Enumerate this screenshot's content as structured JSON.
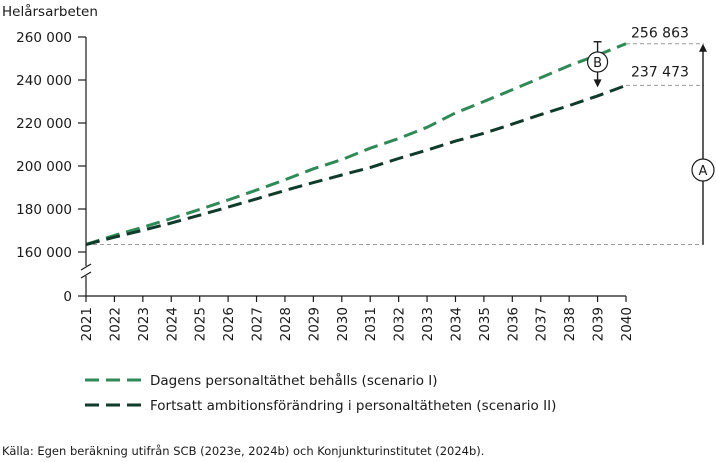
{
  "chart_data": {
    "type": "line",
    "ylabel": "Helårsarbeten",
    "x": [
      2021,
      2022,
      2023,
      2024,
      2025,
      2026,
      2027,
      2028,
      2029,
      2030,
      2031,
      2032,
      2033,
      2034,
      2035,
      2036,
      2037,
      2038,
      2039,
      2040
    ],
    "xtick_labels": [
      "2021",
      "2022",
      "2023",
      "2024",
      "2025",
      "2026",
      "2027",
      "2028",
      "2029",
      "2030",
      "2031",
      "2032",
      "2033",
      "2034",
      "2035",
      "2036",
      "2037",
      "2038",
      "2039",
      "2040"
    ],
    "ylim": [
      0,
      260000
    ],
    "y_axis_break": [
      0,
      160000
    ],
    "ytick_values": [
      0,
      160000,
      180000,
      200000,
      220000,
      240000,
      260000
    ],
    "ytick_labels": [
      "0",
      "160 000",
      "180 000",
      "200 000",
      "220 000",
      "240 000",
      "260 000"
    ],
    "series": [
      {
        "name": "Dagens personaltäthet behålls (scenario I)",
        "color": "#2e8b57",
        "style": "dashed",
        "values": [
          163500,
          167700,
          171500,
          175600,
          179800,
          184200,
          188800,
          193600,
          198700,
          203000,
          208300,
          212800,
          218000,
          224700,
          230000,
          235500,
          241000,
          246700,
          251600,
          256863
        ]
      },
      {
        "name": "Fortsatt ambitionsförändring i personaltätheten (scenario II)",
        "color": "#0f3b2a",
        "style": "dashed",
        "values": [
          163500,
          166900,
          170100,
          173500,
          177100,
          180900,
          184700,
          188600,
          192300,
          195800,
          199300,
          203500,
          207400,
          211600,
          215200,
          219500,
          223900,
          228100,
          232600,
          237473
        ]
      }
    ],
    "end_value_labels": [
      "256 863",
      "237 473"
    ],
    "annotations": [
      "A",
      "B"
    ],
    "legend_position": "bottom",
    "grid": false
  },
  "source": "Källa: Egen beräkning utifrån SCB (2023e, 2024b) och Konjunkturinstitutet (2024b).",
  "colors": {
    "axis": "#1a1a1a",
    "reference_lines": "#9a9a9a"
  }
}
